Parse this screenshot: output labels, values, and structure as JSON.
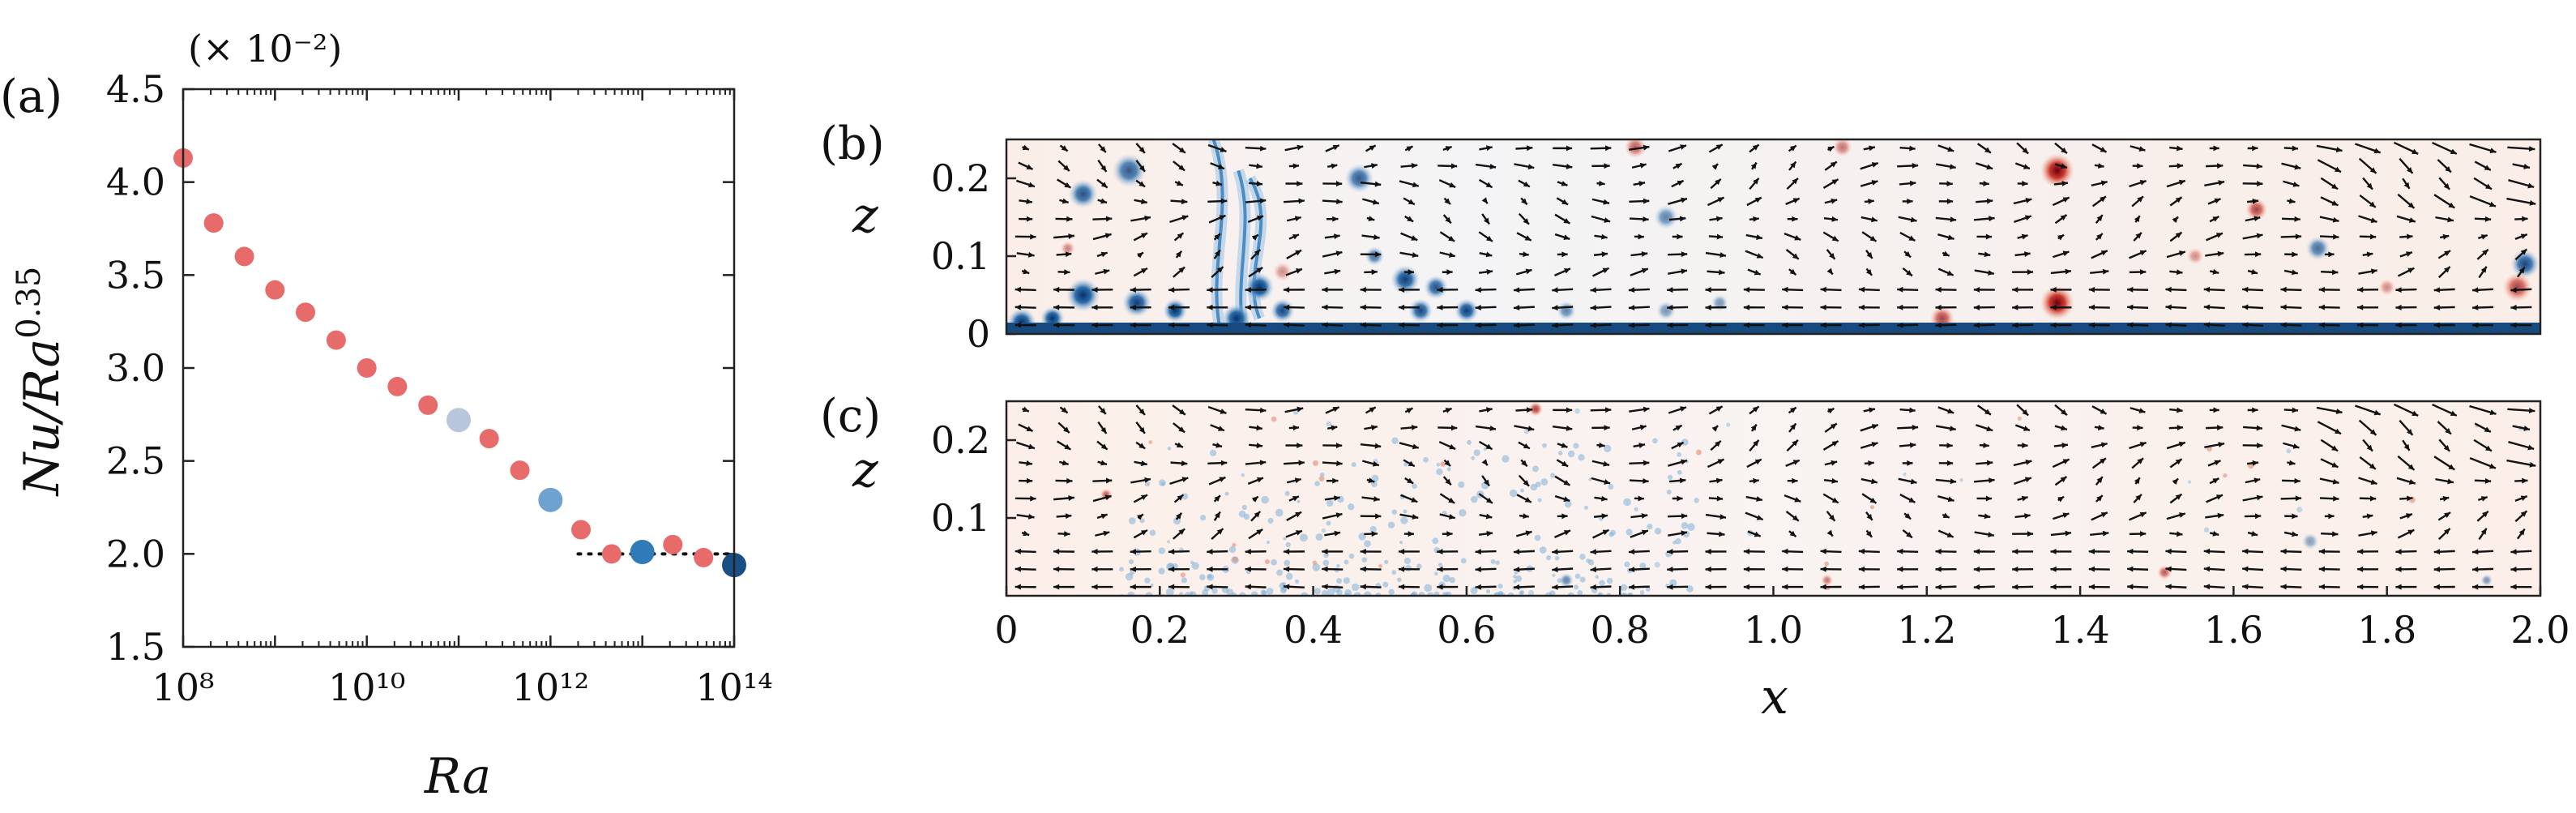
{
  "chart_data": [
    {
      "panel": "(a)",
      "type": "scatter",
      "xscale": "log",
      "xlabel": "Ra",
      "ylabel": "Nu/Ra^0.35",
      "multiplier": "(× 10⁻²)",
      "xlim": [
        100000000.0,
        100000000000000.0
      ],
      "ylim": [
        1.5,
        4.5
      ],
      "xticks": [
        "10⁸",
        "10¹⁰",
        "10¹²",
        "10¹⁴"
      ],
      "yticks": [
        "1.5",
        "2.0",
        "2.5",
        "3.0",
        "3.5",
        "4.0",
        "4.5"
      ],
      "points": [
        {
          "x": 100000000.0,
          "y": 4.13,
          "color": "#e86b6b"
        },
        {
          "x": 215000000.0,
          "y": 3.78,
          "color": "#e86b6b"
        },
        {
          "x": 464000000.0,
          "y": 3.6,
          "color": "#e86b6b"
        },
        {
          "x": 1000000000.0,
          "y": 3.42,
          "color": "#e86b6b"
        },
        {
          "x": 2150000000.0,
          "y": 3.3,
          "color": "#e86b6b"
        },
        {
          "x": 4640000000.0,
          "y": 3.15,
          "color": "#e86b6b"
        },
        {
          "x": 10000000000.0,
          "y": 3.0,
          "color": "#e86b6b"
        },
        {
          "x": 21500000000.0,
          "y": 2.9,
          "color": "#e86b6b"
        },
        {
          "x": 46400000000.0,
          "y": 2.8,
          "color": "#e86b6b"
        },
        {
          "x": 100000000000.0,
          "y": 2.72,
          "color": "#b7c6dc",
          "size": "large"
        },
        {
          "x": 215000000000.0,
          "y": 2.62,
          "color": "#e86b6b"
        },
        {
          "x": 464000000000.0,
          "y": 2.45,
          "color": "#e86b6b"
        },
        {
          "x": 1000000000000.0,
          "y": 2.29,
          "color": "#6fa3cf",
          "size": "large"
        },
        {
          "x": 2150000000000.0,
          "y": 2.13,
          "color": "#e86b6b"
        },
        {
          "x": 4640000000000.0,
          "y": 2.0,
          "color": "#e86b6b"
        },
        {
          "x": 10000000000000.0,
          "y": 2.01,
          "color": "#2f7bb8",
          "size": "large"
        },
        {
          "x": 21500000000000.0,
          "y": 2.05,
          "color": "#e86b6b"
        },
        {
          "x": 46400000000000.0,
          "y": 1.98,
          "color": "#e86b6b"
        },
        {
          "x": 100000000000000.0,
          "y": 1.94,
          "color": "#1a4f86",
          "size": "large"
        }
      ],
      "reference_line": {
        "style": "dotted",
        "x": [
          2000000000000.0,
          100000000000000.0
        ],
        "y": [
          2.0,
          2.0
        ]
      },
      "grid": false
    },
    {
      "panel": "(b)",
      "type": "heatmap",
      "description": "vertical-slice field with velocity quiver overlay",
      "xlim": [
        0,
        2.0
      ],
      "ylim": [
        0,
        0.25
      ],
      "ylabel": "z",
      "yticks": [
        "0",
        "0.1",
        "0.2"
      ],
      "colormap": "RdBu_r",
      "vortex_patches": [
        {
          "x": 0.02,
          "z": 0.015,
          "r": 0.012,
          "sign": -1,
          "s": 1.0
        },
        {
          "x": 0.06,
          "z": 0.02,
          "r": 0.01,
          "sign": -1,
          "s": 1.0
        },
        {
          "x": 0.1,
          "z": 0.18,
          "r": 0.012,
          "sign": -1,
          "s": 0.85
        },
        {
          "x": 0.16,
          "z": 0.21,
          "r": 0.014,
          "sign": -1,
          "s": 0.8
        },
        {
          "x": 0.1,
          "z": 0.05,
          "r": 0.014,
          "sign": -1,
          "s": 1.0
        },
        {
          "x": 0.17,
          "z": 0.04,
          "r": 0.012,
          "sign": -1,
          "s": 0.95
        },
        {
          "x": 0.22,
          "z": 0.03,
          "r": 0.01,
          "sign": -1,
          "s": 1.0
        },
        {
          "x": 0.3,
          "z": 0.02,
          "r": 0.012,
          "sign": -1,
          "s": 1.0
        },
        {
          "x": 0.33,
          "z": 0.06,
          "r": 0.012,
          "sign": -1,
          "s": 1.0
        },
        {
          "x": 0.36,
          "z": 0.03,
          "r": 0.01,
          "sign": -1,
          "s": 0.9
        },
        {
          "x": 0.46,
          "z": 0.2,
          "r": 0.012,
          "sign": -1,
          "s": 0.8
        },
        {
          "x": 0.48,
          "z": 0.1,
          "r": 0.008,
          "sign": -1,
          "s": 0.7
        },
        {
          "x": 0.52,
          "z": 0.07,
          "r": 0.012,
          "sign": -1,
          "s": 0.95
        },
        {
          "x": 0.54,
          "z": 0.03,
          "r": 0.01,
          "sign": -1,
          "s": 0.9
        },
        {
          "x": 0.56,
          "z": 0.06,
          "r": 0.01,
          "sign": -1,
          "s": 0.85
        },
        {
          "x": 0.6,
          "z": 0.03,
          "r": 0.01,
          "sign": -1,
          "s": 0.95
        },
        {
          "x": 0.73,
          "z": 0.03,
          "r": 0.008,
          "sign": -1,
          "s": 0.6
        },
        {
          "x": 0.86,
          "z": 0.15,
          "r": 0.01,
          "sign": -1,
          "s": 0.6
        },
        {
          "x": 0.86,
          "z": 0.03,
          "r": 0.008,
          "sign": -1,
          "s": 0.5
        },
        {
          "x": 0.93,
          "z": 0.04,
          "r": 0.007,
          "sign": -1,
          "s": 0.5
        },
        {
          "x": 1.71,
          "z": 0.11,
          "r": 0.01,
          "sign": -1,
          "s": 0.7
        },
        {
          "x": 1.98,
          "z": 0.09,
          "r": 0.012,
          "sign": -1,
          "s": 0.9
        },
        {
          "x": 1.37,
          "z": 0.21,
          "r": 0.014,
          "sign": 1,
          "s": 1.0
        },
        {
          "x": 1.37,
          "z": 0.04,
          "r": 0.014,
          "sign": 1,
          "s": 1.0
        },
        {
          "x": 1.22,
          "z": 0.02,
          "r": 0.01,
          "sign": 1,
          "s": 0.7
        },
        {
          "x": 0.82,
          "z": 0.24,
          "r": 0.009,
          "sign": 1,
          "s": 0.6
        },
        {
          "x": 1.63,
          "z": 0.16,
          "r": 0.009,
          "sign": 1,
          "s": 0.7
        },
        {
          "x": 1.97,
          "z": 0.06,
          "r": 0.012,
          "sign": 1,
          "s": 0.7
        },
        {
          "x": 0.08,
          "z": 0.11,
          "r": 0.006,
          "sign": 1,
          "s": 0.45
        },
        {
          "x": 0.36,
          "z": 0.08,
          "r": 0.008,
          "sign": 1,
          "s": 0.4
        },
        {
          "x": 1.09,
          "z": 0.24,
          "r": 0.008,
          "sign": 1,
          "s": 0.5
        },
        {
          "x": 1.55,
          "z": 0.1,
          "r": 0.007,
          "sign": 1,
          "s": 0.4
        },
        {
          "x": 1.8,
          "z": 0.06,
          "r": 0.007,
          "sign": 1,
          "s": 0.4
        }
      ],
      "plumes": [
        {
          "x": 0.28,
          "z_top": 0.25,
          "z_bottom": 0.0,
          "wave": 0.02
        },
        {
          "x": 0.31,
          "z_top": 0.21,
          "z_bottom": 0.0,
          "wave": 0.015
        },
        {
          "x": 0.33,
          "z_top": 0.2,
          "z_bottom": 0.02,
          "wave": 0.025
        }
      ]
    },
    {
      "panel": "(c)",
      "type": "heatmap",
      "description": "vertical-slice field with velocity quiver overlay",
      "xlim": [
        0,
        2.0
      ],
      "ylim": [
        0,
        0.25
      ],
      "xlabel": "x",
      "ylabel": "z",
      "xticks": [
        "0",
        "0.2",
        "0.4",
        "0.6",
        "0.8",
        "1.0",
        "1.2",
        "1.4",
        "1.6",
        "1.8",
        "2.0"
      ],
      "yticks": [
        "0.1",
        "0.2"
      ],
      "colormap": "RdBu_r",
      "vortex_patches": [
        {
          "x": 0.69,
          "z": 0.24,
          "r": 0.006,
          "sign": 1,
          "s": 0.7
        },
        {
          "x": 0.13,
          "z": 0.13,
          "r": 0.005,
          "sign": 1,
          "s": 0.6
        },
        {
          "x": 1.51,
          "z": 0.03,
          "r": 0.006,
          "sign": 1,
          "s": 0.6
        },
        {
          "x": 1.07,
          "z": 0.02,
          "r": 0.005,
          "sign": 1,
          "s": 0.5
        },
        {
          "x": 0.73,
          "z": 0.02,
          "r": 0.006,
          "sign": -1,
          "s": 0.6
        },
        {
          "x": 1.7,
          "z": 0.07,
          "r": 0.007,
          "sign": -1,
          "s": 0.45
        },
        {
          "x": 1.93,
          "z": 0.02,
          "r": 0.005,
          "sign": -1,
          "s": 0.5
        }
      ]
    }
  ]
}
